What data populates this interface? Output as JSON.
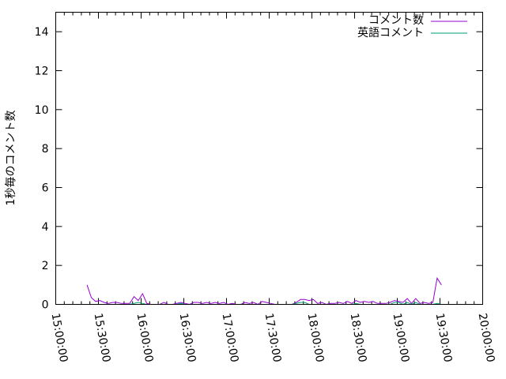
{
  "chart_data": {
    "type": "line",
    "title": "",
    "xlabel": "",
    "ylabel": "1秒毎のコメント数",
    "xlim": [
      "15:00:00",
      "20:00:00"
    ],
    "ylim": [
      0,
      15
    ],
    "x_ticks": [
      "15:00:00",
      "15:30:00",
      "16:00:00",
      "16:30:00",
      "17:00:00",
      "17:30:00",
      "18:00:00",
      "18:30:00",
      "19:00:00",
      "19:30:00",
      "20:00:00"
    ],
    "y_ticks": [
      "0",
      "2",
      "4",
      "6",
      "8",
      "10",
      "12",
      "14"
    ],
    "y_tick_values": [
      0,
      2,
      4,
      6,
      8,
      10,
      12,
      14
    ],
    "legend_position": "top-right",
    "grid": false,
    "x": [
      "15:22",
      "15:25",
      "15:28",
      "15:31",
      "15:34",
      "15:37",
      "15:40",
      "15:43",
      "15:46",
      "15:49",
      "15:52",
      "15:55",
      "15:58",
      "16:01",
      "16:04",
      "16:07",
      "16:10",
      "16:13",
      "16:16",
      "16:19",
      "16:22",
      "16:25",
      "16:28",
      "16:31",
      "16:34",
      "16:37",
      "16:40",
      "16:43",
      "16:46",
      "16:49",
      "16:52",
      "16:55",
      "16:58",
      "17:01",
      "17:04",
      "17:07",
      "17:10",
      "17:13",
      "17:16",
      "17:19",
      "17:22",
      "17:25",
      "17:28",
      "17:31",
      "17:34",
      "17:37",
      "17:40",
      "17:43",
      "17:46",
      "17:49",
      "17:52",
      "17:55",
      "17:58",
      "18:01",
      "18:04",
      "18:07",
      "18:10",
      "18:13",
      "18:16",
      "18:19",
      "18:22",
      "18:25",
      "18:28",
      "18:31",
      "18:34",
      "18:37",
      "18:40",
      "18:43",
      "18:46",
      "18:49",
      "18:52",
      "18:55",
      "18:58",
      "19:01",
      "19:04",
      "19:07",
      "19:10",
      "19:13",
      "19:16",
      "19:19",
      "19:22",
      "19:25",
      "19:28",
      "19:31"
    ],
    "series": [
      {
        "name": "コメント数",
        "color": "#9400d3",
        "values": [
          1.0,
          0.35,
          0.15,
          0.2,
          0.1,
          0.05,
          0.1,
          0.1,
          0.05,
          0.05,
          0.05,
          0.4,
          0.2,
          0.55,
          0.05,
          0,
          0,
          0,
          0.1,
          0,
          0,
          0.05,
          0.1,
          0.05,
          0,
          0.1,
          0.1,
          0.05,
          0.1,
          0.05,
          0.1,
          0.05,
          0.1,
          0,
          0.05,
          0,
          0,
          0.1,
          0.05,
          0.1,
          0,
          0.15,
          0.1,
          0.05,
          0,
          0,
          0,
          0,
          0,
          0.1,
          0.25,
          0.25,
          0.2,
          0.25,
          0.05,
          0.1,
          0,
          0.05,
          0.05,
          0.1,
          0.05,
          0.15,
          0.05,
          0.2,
          0.1,
          0.15,
          0.1,
          0.15,
          0.05,
          0.05,
          0.05,
          0.1,
          0.2,
          0.15,
          0.1,
          0.3,
          0.05,
          0.3,
          0.05,
          0.1,
          0.05,
          0.1,
          1.35,
          1.0
        ]
      },
      {
        "name": "英語コメント",
        "color": "#009e73",
        "values": [
          0,
          0,
          0,
          0,
          0,
          0,
          0,
          0,
          0,
          0,
          0,
          0.05,
          0.1,
          0.05,
          0,
          0,
          0,
          0,
          0,
          0,
          0,
          0,
          0.05,
          0,
          0,
          0,
          0,
          0,
          0,
          0,
          0,
          0,
          0,
          0,
          0,
          0,
          0,
          0,
          0,
          0,
          0,
          0,
          0,
          0,
          0,
          0,
          0,
          0,
          0,
          0.05,
          0.1,
          0.1,
          0,
          0,
          0,
          0,
          0,
          0,
          0,
          0,
          0,
          0,
          0,
          0.05,
          0,
          0,
          0,
          0,
          0,
          0,
          0,
          0,
          0.1,
          0.1,
          0,
          0.1,
          0,
          0.1,
          0,
          0,
          0,
          0,
          0.05,
          0
        ]
      }
    ]
  }
}
